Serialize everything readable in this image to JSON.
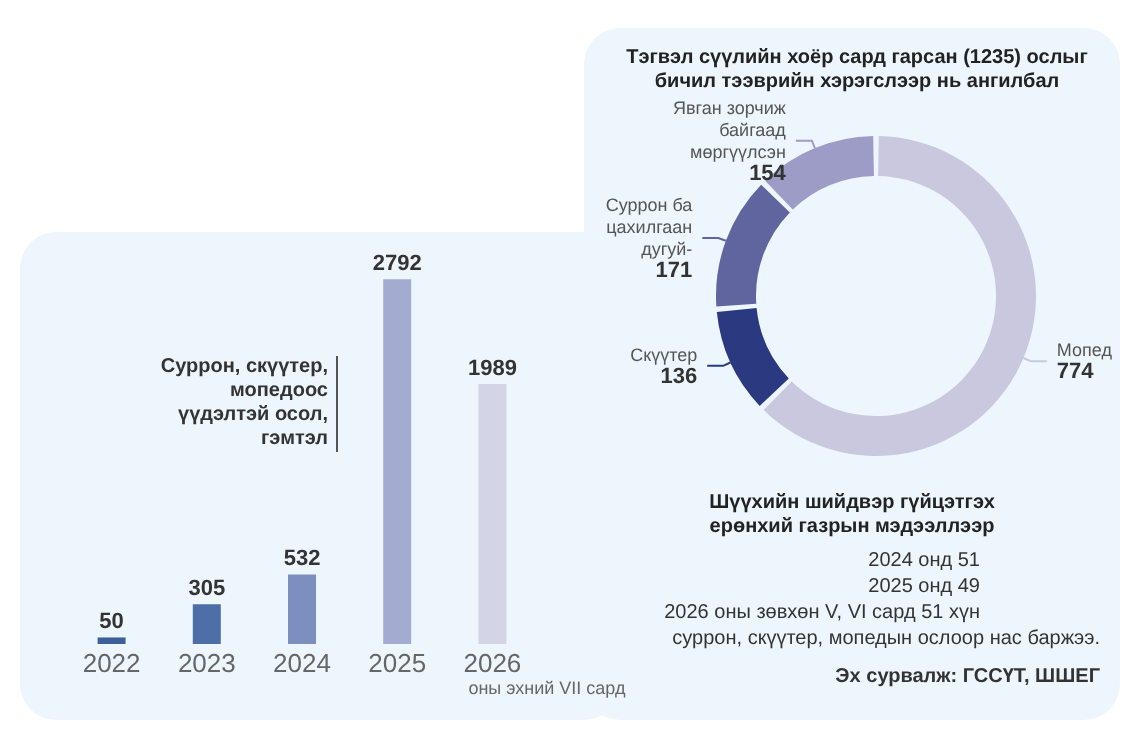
{
  "chart_data": [
    {
      "type": "bar",
      "categories": [
        "2022",
        "2023",
        "2024",
        "2025",
        "2026"
      ],
      "values": [
        50,
        305,
        532,
        2792,
        1989
      ],
      "colors": [
        "#3d5f9a",
        "#4e6ea8",
        "#7d8fbf",
        "#a3acd0",
        "#d3d5e6"
      ],
      "data_labels": true,
      "annotations": [
        "Суррон, скүүтер, мопедоос үүдэлтэй осол, гэмтэл",
        "оны эхний VII сард"
      ]
    },
    {
      "type": "donut",
      "title": "Тэгвэл сүүлийн хоёр сард гарсан (1235) ослыг бичил тээврийн хэрэгслээр нь ангилбал",
      "categories": [
        "Мопед",
        "Скүүтер",
        "Суррон ба цахилгаан дугуй-",
        "Явган зорчиж байгаад мөргүүлсэн"
      ],
      "values": [
        774,
        136,
        171,
        154
      ],
      "colors": [
        "#c9c8df",
        "#2b3a80",
        "#6065a0",
        "#9c9cc6"
      ],
      "data_labels": true
    },
    {
      "type": "other",
      "title": "Шүүхийн шийдвэр гүйцэтгэх ерөнхий газрын мэдээллээр",
      "annotations": [
        "2024 онд 51",
        "2025 онд 49",
        "2026 оны зөвхөн V, VI сард 51 хүн",
        "суррон, скүүтер, мопедын ослоор нас баржээ.",
        "Эх сурвалж: ГССҮТ, ШШЕГ"
      ]
    }
  ]
}
